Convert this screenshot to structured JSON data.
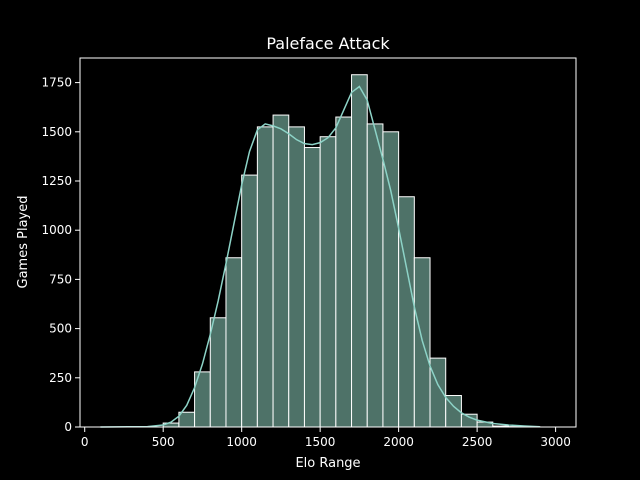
{
  "chart_data": {
    "type": "bar",
    "title": "Paleface Attack",
    "xlabel": "Elo Range",
    "ylabel": "Games Played",
    "xlim": [
      -30,
      3130
    ],
    "ylim": [
      0,
      1875
    ],
    "xticks": [
      0,
      500,
      1000,
      1500,
      2000,
      2500,
      3000
    ],
    "yticks": [
      0,
      250,
      500,
      750,
      1000,
      1250,
      1500,
      1750
    ],
    "grid": false,
    "bin_width": 100,
    "bins": [
      {
        "x0": 100,
        "x1": 200,
        "value": 0
      },
      {
        "x0": 200,
        "x1": 300,
        "value": 0
      },
      {
        "x0": 300,
        "x1": 400,
        "value": 0
      },
      {
        "x0": 400,
        "x1": 500,
        "value": 0
      },
      {
        "x0": 500,
        "x1": 600,
        "value": 20
      },
      {
        "x0": 600,
        "x1": 700,
        "value": 75
      },
      {
        "x0": 700,
        "x1": 800,
        "value": 280
      },
      {
        "x0": 800,
        "x1": 900,
        "value": 555
      },
      {
        "x0": 900,
        "x1": 1000,
        "value": 860
      },
      {
        "x0": 1000,
        "x1": 1100,
        "value": 1280
      },
      {
        "x0": 1100,
        "x1": 1200,
        "value": 1525
      },
      {
        "x0": 1200,
        "x1": 1300,
        "value": 1585
      },
      {
        "x0": 1300,
        "x1": 1400,
        "value": 1525
      },
      {
        "x0": 1400,
        "x1": 1500,
        "value": 1420
      },
      {
        "x0": 1500,
        "x1": 1600,
        "value": 1475
      },
      {
        "x0": 1600,
        "x1": 1700,
        "value": 1575
      },
      {
        "x0": 1700,
        "x1": 1800,
        "value": 1790
      },
      {
        "x0": 1800,
        "x1": 1900,
        "value": 1540
      },
      {
        "x0": 1900,
        "x1": 2000,
        "value": 1500
      },
      {
        "x0": 2000,
        "x1": 2100,
        "value": 1170
      },
      {
        "x0": 2100,
        "x1": 2200,
        "value": 860
      },
      {
        "x0": 2200,
        "x1": 2300,
        "value": 350
      },
      {
        "x0": 2300,
        "x1": 2400,
        "value": 160
      },
      {
        "x0": 2400,
        "x1": 2500,
        "value": 65
      },
      {
        "x0": 2500,
        "x1": 2600,
        "value": 25
      },
      {
        "x0": 2600,
        "x1": 2700,
        "value": 5
      },
      {
        "x0": 2700,
        "x1": 2800,
        "value": 2
      },
      {
        "x0": 2800,
        "x1": 2900,
        "value": 1
      }
    ],
    "kde": {
      "x": [
        100,
        400,
        500,
        550,
        600,
        650,
        700,
        750,
        800,
        850,
        900,
        950,
        1000,
        1050,
        1100,
        1150,
        1200,
        1250,
        1300,
        1350,
        1400,
        1450,
        1500,
        1550,
        1600,
        1650,
        1700,
        1750,
        1800,
        1850,
        1900,
        1950,
        2000,
        2050,
        2100,
        2150,
        2200,
        2250,
        2300,
        2350,
        2400,
        2450,
        2500,
        2600,
        2700,
        2800,
        2900
      ],
      "y": [
        0,
        2,
        10,
        25,
        55,
        110,
        200,
        320,
        470,
        640,
        830,
        1030,
        1230,
        1400,
        1510,
        1540,
        1530,
        1515,
        1490,
        1460,
        1440,
        1435,
        1445,
        1470,
        1520,
        1610,
        1700,
        1730,
        1660,
        1510,
        1360,
        1200,
        1010,
        810,
        610,
        440,
        310,
        215,
        150,
        105,
        72,
        50,
        35,
        18,
        10,
        5,
        1
      ]
    },
    "colors": {
      "bar_fill": "#4e7268",
      "bar_edge": "#ffffff",
      "kde_line": "#8dd3c7",
      "background": "#000000",
      "text": "#ffffff"
    }
  }
}
